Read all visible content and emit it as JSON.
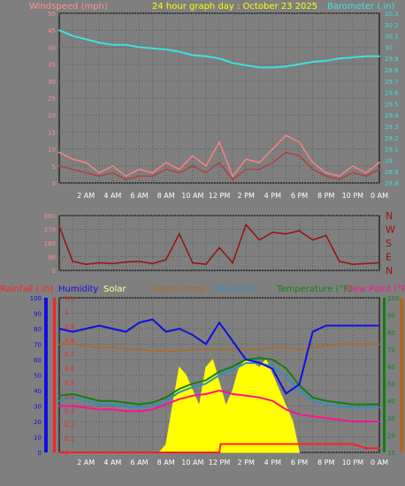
{
  "chart_data": [
    {
      "type": "line",
      "title": "24 hour graph day : October 23 2025",
      "ylabel_left": "Windspeed (mph)",
      "ylabel_right": "Barometer (.in)",
      "ylim_left": [
        0,
        50
      ],
      "ylim_right": [
        28.8,
        30.3
      ],
      "yticks_left": [
        "0",
        "5",
        "10",
        "15",
        "20",
        "25",
        "30",
        "35",
        "40",
        "45",
        "50"
      ],
      "yticks_right": [
        "28.8",
        "28.9",
        "29",
        "29.1",
        "29.2",
        "29.3",
        "29.4",
        "29.5",
        "29.6",
        "29.7",
        "29.8",
        "29.9",
        "30",
        "30.1",
        "30.2",
        "30.3"
      ],
      "x_ticks": [
        "2 AM",
        "4 AM",
        "6 AM",
        "8 AM",
        "10 AM",
        "12 PM",
        "2 PM",
        "4 PM",
        "6 PM",
        "8 PM",
        "10 PM",
        "0 AM"
      ],
      "series": [
        {
          "color": "#ff8080",
          "x": [
            0,
            1,
            2,
            3,
            4,
            5,
            6,
            7,
            8,
            9,
            10,
            11,
            12,
            13,
            14,
            15,
            16,
            17,
            18,
            19,
            20,
            21,
            22,
            23,
            24
          ],
          "values": [
            9,
            7,
            6,
            3,
            5,
            2,
            4,
            3,
            6,
            4,
            8,
            5,
            12,
            2,
            7,
            6,
            10,
            14,
            12,
            6,
            3,
            2,
            5,
            3,
            6
          ]
        },
        {
          "color": "#b04040",
          "x": [
            0,
            1,
            2,
            3,
            4,
            5,
            6,
            7,
            8,
            9,
            10,
            11,
            12,
            13,
            14,
            15,
            16,
            17,
            18,
            19,
            20,
            21,
            22,
            23,
            24
          ],
          "values": [
            5,
            4,
            3,
            2,
            3,
            1,
            2,
            2,
            4,
            3,
            5,
            3,
            6,
            1,
            4,
            4,
            6,
            9,
            8,
            4,
            2,
            1,
            3,
            2,
            4
          ]
        },
        {
          "color": "#40e0e0",
          "x": [
            0,
            1,
            2,
            3,
            4,
            5,
            6,
            7,
            8,
            9,
            10,
            11,
            12,
            13,
            14,
            15,
            16,
            17,
            18,
            19,
            20,
            21,
            22,
            23,
            24
          ],
          "values": [
            30.15,
            30.1,
            30.07,
            30.04,
            30.02,
            30.02,
            30.0,
            29.99,
            29.98,
            29.96,
            29.93,
            29.92,
            29.9,
            29.86,
            29.84,
            29.82,
            29.82,
            29.83,
            29.85,
            29.87,
            29.88,
            29.9,
            29.91,
            29.92,
            29.92
          ]
        }
      ]
    },
    {
      "type": "line",
      "ylim": [
        0,
        360
      ],
      "yticks": [
        "0",
        "90",
        "180",
        "270",
        "360"
      ],
      "direction_labels": [
        "N",
        "W",
        "S",
        "E",
        "N"
      ],
      "x_ticks": [],
      "series": [
        {
          "color": "#9a1010",
          "x": [
            0,
            1,
            2,
            3,
            4,
            5,
            6,
            7,
            8,
            9,
            10,
            11,
            12,
            13,
            14,
            15,
            16,
            17,
            18,
            19,
            20,
            21,
            22,
            23,
            24
          ],
          "values": [
            290,
            60,
            40,
            50,
            45,
            55,
            60,
            45,
            70,
            240,
            50,
            40,
            150,
            50,
            300,
            200,
            250,
            240,
            260,
            200,
            230,
            60,
            40,
            45,
            50
          ]
        }
      ]
    },
    {
      "type": "line",
      "legend": [
        "Rainfall (.in)",
        "Humidity",
        "Solar",
        "Indoor temp",
        "Windchill",
        "Temperature (°F)",
        "Dew Point (°F"
      ],
      "legend_colors": [
        "#ff2020",
        "#1010e0",
        "#ffffa0",
        "#b06820",
        "#3090c0",
        "#108010",
        "#ff1090"
      ],
      "ylim_left_outer": [
        0,
        100
      ],
      "yticks_left_outer": [
        "0",
        "10",
        "20",
        "30",
        "40",
        "50",
        "60",
        "70",
        "80",
        "90",
        "100"
      ],
      "ylim_left_inner": [
        0,
        1.1
      ],
      "yticks_left_inner": [
        "0",
        "0.1",
        "0.2",
        "0.3",
        "0.4",
        "0.5",
        "0.6",
        "0.7",
        "0.8",
        "0.9",
        "1",
        "1.1"
      ],
      "ylim_right": [
        10,
        100
      ],
      "yticks_right": [
        "10",
        "20",
        "30",
        "40",
        "50",
        "60",
        "70",
        "80",
        "90",
        "100"
      ],
      "x_ticks": [
        "2 AM",
        "4 AM",
        "6 AM",
        "8 AM",
        "10 AM",
        "12 PM",
        "2 PM",
        "4 PM",
        "6 PM",
        "8 PM",
        "10 PM",
        "0 AM"
      ],
      "series": [
        {
          "name": "Humidity",
          "color": "#1010e0",
          "x": [
            0,
            1,
            2,
            3,
            4,
            5,
            6,
            7,
            8,
            9,
            10,
            11,
            12,
            13,
            14,
            15,
            16,
            17,
            18,
            19,
            20,
            21,
            22,
            23,
            24
          ],
          "values": [
            80,
            78,
            80,
            82,
            80,
            78,
            84,
            86,
            78,
            80,
            76,
            70,
            84,
            72,
            60,
            58,
            54,
            38,
            44,
            78,
            82,
            82,
            82,
            82,
            82
          ]
        },
        {
          "name": "Indoor temp",
          "color": "#b06820",
          "x": [
            0,
            1,
            2,
            3,
            4,
            5,
            6,
            7,
            8,
            9,
            10,
            11,
            12,
            13,
            14,
            15,
            16,
            17,
            18,
            19,
            20,
            21,
            22,
            23,
            24
          ],
          "values": [
            73,
            73,
            72,
            71,
            71,
            70,
            70,
            69,
            69,
            69,
            70,
            70,
            70,
            70,
            70,
            70,
            71,
            71,
            70,
            71,
            72,
            73,
            73,
            73,
            73
          ]
        },
        {
          "name": "Windchill",
          "color": "#3090c0",
          "x": [
            0,
            1,
            2,
            3,
            4,
            5,
            6,
            7,
            8,
            9,
            10,
            11,
            12,
            13,
            14,
            15,
            16,
            17,
            18,
            19,
            20,
            21,
            22,
            23,
            24
          ],
          "values": [
            40,
            42,
            40,
            38,
            38,
            37,
            36,
            37,
            40,
            45,
            48,
            50,
            55,
            58,
            62,
            62,
            60,
            54,
            46,
            40,
            38,
            37,
            36,
            36,
            36
          ]
        },
        {
          "name": "Temperature (°F)",
          "color": "#108010",
          "x": [
            0,
            1,
            2,
            3,
            4,
            5,
            6,
            7,
            8,
            9,
            10,
            11,
            12,
            13,
            14,
            15,
            16,
            17,
            18,
            19,
            20,
            21,
            22,
            23,
            24
          ],
          "values": [
            43,
            44,
            42,
            40,
            40,
            39,
            38,
            39,
            42,
            47,
            50,
            52,
            57,
            60,
            64,
            65,
            64,
            59,
            49,
            42,
            40,
            39,
            38,
            38,
            38
          ]
        },
        {
          "name": "Dew Point (°F",
          "color": "#ff1090",
          "x": [
            0,
            1,
            2,
            3,
            4,
            5,
            6,
            7,
            8,
            9,
            10,
            11,
            12,
            13,
            14,
            15,
            16,
            17,
            18,
            19,
            20,
            21,
            22,
            23,
            24
          ],
          "values": [
            37,
            37,
            36,
            35,
            35,
            34,
            34,
            35,
            38,
            41,
            43,
            44,
            46,
            44,
            43,
            42,
            40,
            35,
            32,
            31,
            30,
            29,
            28,
            28,
            28
          ]
        },
        {
          "name": "Rainfall (.in)",
          "color": "#ff2020",
          "x": [
            0,
            9,
            10,
            11,
            12,
            12.1,
            13,
            14,
            15,
            16,
            17,
            18,
            18.1,
            19,
            20,
            21,
            22,
            23,
            24
          ],
          "values": [
            0,
            0,
            0,
            0,
            0,
            0.06,
            0.06,
            0.06,
            0.06,
            0.06,
            0.06,
            0.06,
            0.06,
            0.06,
            0.06,
            0.06,
            0.06,
            0.03,
            0.03
          ]
        },
        {
          "name": "Solar",
          "color": "#ffff00",
          "x": [
            7.5,
            8,
            8.5,
            9,
            9.5,
            10,
            10.5,
            11,
            11.5,
            12,
            12.5,
            13,
            13.5,
            14,
            14.5,
            15,
            15.5,
            16,
            16.5,
            17,
            17.5,
            18
          ],
          "values": [
            0,
            5,
            30,
            55,
            50,
            40,
            30,
            55,
            60,
            45,
            30,
            40,
            55,
            60,
            58,
            55,
            60,
            50,
            40,
            30,
            20,
            0
          ]
        }
      ]
    }
  ]
}
